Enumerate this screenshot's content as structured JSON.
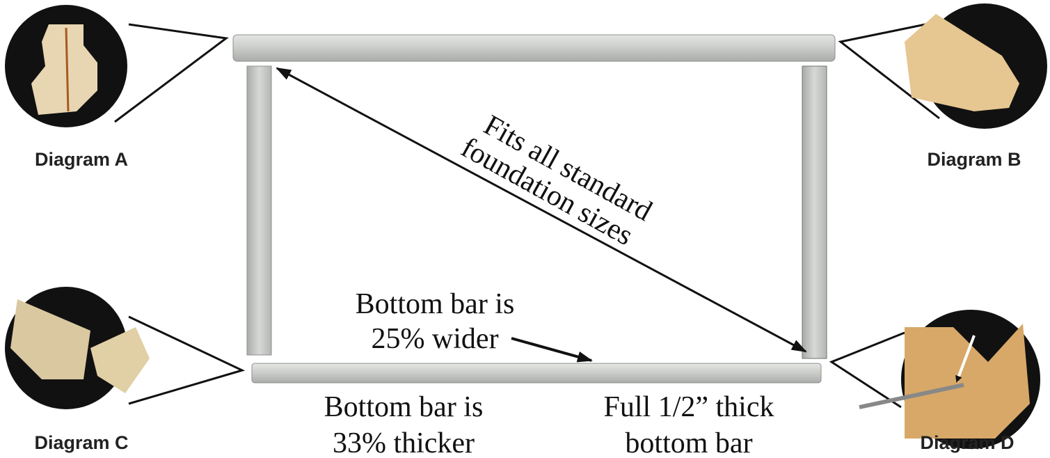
{
  "diagrams": [
    "Diagram A",
    "Diagram B",
    "Diagram C",
    "Diagram D"
  ],
  "annotations": {
    "fits": [
      "Fits all standard",
      "foundation sizes"
    ],
    "wider": [
      "Bottom bar is",
      "25% wider"
    ],
    "thicker": [
      "Bottom bar is",
      "33% thicker"
    ],
    "thick": [
      "Full 1/2” thick",
      "bottom bar"
    ]
  }
}
